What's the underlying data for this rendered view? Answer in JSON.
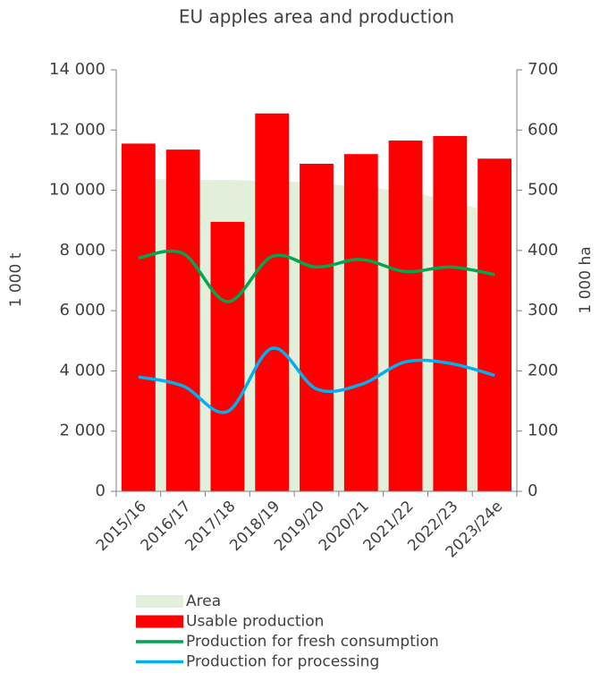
{
  "chart_data": {
    "type": "bar",
    "title": "EU apples area and production",
    "y_label": "1 000 t",
    "y2_label": "1 000 ha",
    "categories": [
      "2015/16",
      "2016/17",
      "2017/18",
      "2018/19",
      "2019/20",
      "2020/21",
      "2021/22",
      "2022/23",
      "2023/24e"
    ],
    "series": [
      {
        "name": "Area",
        "type": "area",
        "axis": "y2",
        "color": "#e2efda",
        "values": [
          520,
          517,
          517,
          515,
          512,
          505,
          498,
          482,
          462
        ]
      },
      {
        "name": "Usable production",
        "type": "bar",
        "color": "#ff0000",
        "values": [
          11550,
          11350,
          8950,
          12550,
          10880,
          11200,
          11650,
          11800,
          11050
        ]
      },
      {
        "name": "Production for fresh consumption",
        "type": "line",
        "color": "#00a651",
        "values": [
          7750,
          7900,
          6300,
          7800,
          7450,
          7700,
          7300,
          7450,
          7200
        ]
      },
      {
        "name": "Production for processing",
        "type": "line",
        "color": "#00b0f0",
        "values": [
          3800,
          3500,
          2650,
          4750,
          3400,
          3550,
          4300,
          4250,
          3850
        ]
      }
    ],
    "ylim": [
      0,
      14000
    ],
    "yticks": [
      {
        "value": 0,
        "label": "0"
      },
      {
        "value": 2000,
        "label": "2 000"
      },
      {
        "value": 4000,
        "label": "4 000"
      },
      {
        "value": 6000,
        "label": "6 000"
      },
      {
        "value": 8000,
        "label": "8 000"
      },
      {
        "value": 10000,
        "label": "10 000"
      },
      {
        "value": 12000,
        "label": "12 000"
      },
      {
        "value": 14000,
        "label": "14 000"
      }
    ],
    "y2lim": [
      0,
      700
    ],
    "y2ticks": [
      0,
      100,
      200,
      300,
      400,
      500,
      600,
      700
    ],
    "legend": "bottom"
  }
}
